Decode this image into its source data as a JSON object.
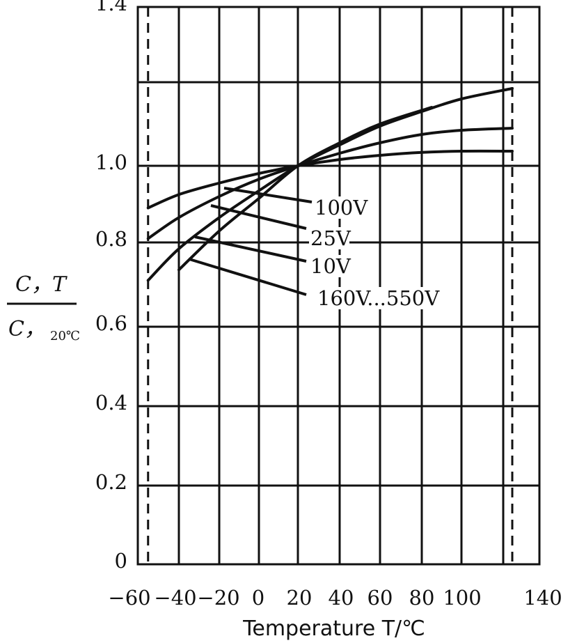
{
  "chart_data": {
    "type": "line",
    "xlabel": "Temperature T/℃",
    "ylabel": {
      "numerator": "C，T",
      "denominator": "C，",
      "denominator_sub": "20℃"
    },
    "xlim": [
      -60,
      140
    ],
    "ylim": [
      0,
      1.4
    ],
    "x_ticks": [
      {
        "label": "−60",
        "value": -60
      },
      {
        "label": "−40",
        "value": -40
      },
      {
        "label": "−20",
        "value": -20
      },
      {
        "label": "0",
        "value": 0
      },
      {
        "label": "20",
        "value": 20
      },
      {
        "label": "40",
        "value": 40
      },
      {
        "label": "60",
        "value": 60
      },
      {
        "label": "80",
        "value": 80
      },
      {
        "label": "100",
        "value": 100
      },
      {
        "label": "140",
        "value": 140
      }
    ],
    "y_ticks": [
      {
        "label": "0",
        "value": 0
      },
      {
        "label": "0.2",
        "value": 0.2
      },
      {
        "label": "0.4",
        "value": 0.4
      },
      {
        "label": "0.6",
        "value": 0.6
      },
      {
        "label": "0.8",
        "value": 0.8
      },
      {
        "label": "1.0",
        "value": 1.0
      },
      {
        "label": "1.4",
        "value": 1.4
      }
    ],
    "vertical_gridlines": [
      -40,
      -20,
      0,
      20,
      40,
      60,
      80,
      100,
      120,
      140
    ],
    "horizontal_gridlines": [
      0.2,
      0.4,
      0.6,
      0.8,
      1.0,
      1.2,
      1.4
    ],
    "dashed_limits": [
      -55,
      125
    ],
    "series": [
      {
        "name": "100V",
        "x": [
          -55,
          -40,
          -20,
          0,
          20,
          40,
          60,
          80,
          100,
          125
        ],
        "y": [
          0.89,
          0.925,
          0.955,
          0.98,
          1.0,
          1.015,
          1.025,
          1.032,
          1.035,
          1.035
        ]
      },
      {
        "name": "25V",
        "x": [
          -55,
          -40,
          -20,
          0,
          20,
          40,
          60,
          80,
          100,
          125
        ],
        "y": [
          0.81,
          0.865,
          0.92,
          0.965,
          1.0,
          1.03,
          1.055,
          1.075,
          1.085,
          1.09
        ]
      },
      {
        "name": "10V",
        "x": [
          -55,
          -40,
          -20,
          0,
          20,
          40,
          60,
          80,
          100,
          125
        ],
        "y": [
          0.71,
          0.785,
          0.865,
          0.935,
          1.0,
          1.05,
          1.095,
          1.13,
          1.16,
          1.185
        ]
      },
      {
        "name": "160V...550V",
        "x": [
          -40,
          -20,
          0,
          20,
          40,
          60,
          85
        ],
        "y": [
          0.735,
          0.83,
          0.915,
          1.0,
          1.055,
          1.1,
          1.14
        ]
      }
    ],
    "annotations": [
      {
        "text": "100V",
        "series": "100V"
      },
      {
        "text": "25V",
        "series": "25V"
      },
      {
        "text": "10V",
        "series": "10V"
      },
      {
        "text": "160V...550V",
        "series": "160V...550V"
      }
    ],
    "grid": true,
    "legend": "none"
  }
}
